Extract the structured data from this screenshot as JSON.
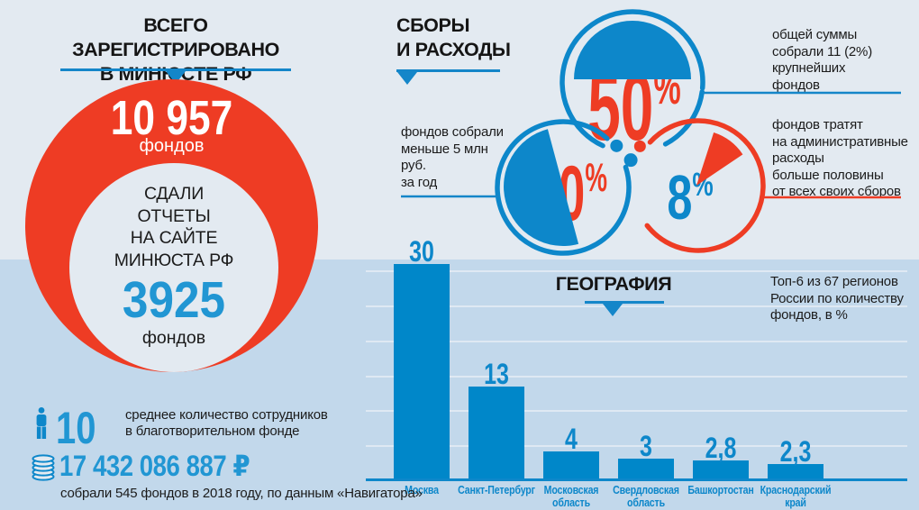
{
  "colors": {
    "bg_top": "#e3eaf1",
    "bg_band": "#c2d8eb",
    "red": "#ee3c24",
    "blue": "#0d87ca",
    "blue_bright": "#2196d3",
    "rule_blue": "#1486c9",
    "text_dark": "#1b1b1b",
    "white": "#ffffff",
    "gridline": "#dfe9f3"
  },
  "registered": {
    "title_line1": "ВСЕГО ЗАРЕГИСТРИРОВАНО",
    "title_line2": "В МИНЮСТЕ РФ",
    "total_value": "10 957",
    "total_unit": "фондов",
    "reported_label_lines": [
      "СДАЛИ",
      "ОТЧЕТЫ",
      "НА САЙТЕ",
      "МИНЮСТА РФ"
    ],
    "reported_value": "3925",
    "reported_unit": "фондов"
  },
  "fees": {
    "title_line1": "СБОРЫ",
    "title_line2": "И РАСХОДЫ",
    "donuts": [
      {
        "pct_value": "50",
        "pct_sign": "%",
        "note_lines": [
          "общей суммы",
          "собрали 11 (2%)",
          "крупнейших",
          "фондов"
        ]
      },
      {
        "pct_value": "50",
        "pct_sign": "%",
        "note_lines": [
          "фондов собрали",
          "меньше 5 млн руб.",
          "за год"
        ]
      },
      {
        "pct_value": "8",
        "pct_sign": "%",
        "note_lines": [
          "фондов тратят",
          "на административные",
          "расходы",
          "больше половины",
          "от всех своих сборов"
        ]
      }
    ]
  },
  "stats": {
    "employees_value": "10",
    "employees_note_lines": [
      "среднее количество сотрудников",
      "в благотворительном фонде"
    ],
    "amount_value": "17 432 086 887 ₽",
    "amount_note": "собрали 545 фондов в 2018 году, по данным «Навигатора»"
  },
  "geography": {
    "title": "ГЕОГРАФИЯ",
    "note_lines": [
      "Топ-6 из 67 регионов",
      "России по количеству",
      "фондов, в %"
    ]
  },
  "chart_data": [
    {
      "type": "bar",
      "title": "ГЕОГРАФИЯ",
      "subtitle": "Топ-6 из 67 регионов России по количеству фондов, в %",
      "categories": [
        "Москва",
        "Санкт-Петербург",
        "Московская область",
        "Свердловская область",
        "Башкортостан",
        "Краснодарский край"
      ],
      "category_lines": [
        [
          "Москва"
        ],
        [
          "Санкт-Петербург"
        ],
        [
          "Московская",
          "область"
        ],
        [
          "Свердловская",
          "область"
        ],
        [
          "Башкортостан"
        ],
        [
          "Краснодарский",
          "край"
        ]
      ],
      "values": [
        30,
        13,
        4,
        3,
        2.8,
        2.3
      ],
      "value_labels": [
        "30",
        "13",
        "4",
        "3",
        "2,8",
        "2,3"
      ],
      "xlabel": "",
      "ylabel": "",
      "ylim": [
        0,
        30
      ],
      "grid": "horizontal gridlines every 5",
      "legend": "none",
      "bar_color": "#0087c9"
    },
    {
      "type": "pie",
      "title": "СБОРЫ И РАСХОДЫ",
      "unit": "%",
      "slices": [
        {
          "value": 50,
          "label": "общей суммы собрали 11 (2%) крупнейших фондов"
        },
        {
          "value": 50,
          "label": "фондов собрали меньше 5 млн руб. за год"
        },
        {
          "value": 8,
          "label": "фондов тратят на административные расходы больше половины от всех своих сборов"
        }
      ]
    }
  ]
}
